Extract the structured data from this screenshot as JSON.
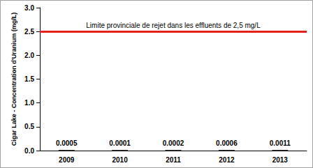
{
  "chart_data": {
    "type": "bar",
    "ylabel": "Cigar Lake - Concentration d'Uranium (mg/L)",
    "categories": [
      "2009",
      "2010",
      "2011",
      "2012",
      "2013"
    ],
    "values": [
      0.0005,
      0.0001,
      0.0002,
      0.0006,
      0.0011
    ],
    "color": "#000000",
    "ylim": [
      0,
      3.0
    ],
    "yticks": [
      {
        "value": 0,
        "label": "0.0"
      },
      0.5,
      {
        "value": 1,
        "label": "1.0"
      },
      1.5,
      {
        "value": 2,
        "label": "2.0"
      },
      2.5,
      {
        "value": 3,
        "label": "3.0"
      }
    ],
    "grid": false,
    "data_labels": true,
    "reference_line": {
      "value": 2.5,
      "label": "Limite provinciale de rejet dans les effluents de 2,5 mg/L",
      "color": "#e8201c"
    }
  }
}
